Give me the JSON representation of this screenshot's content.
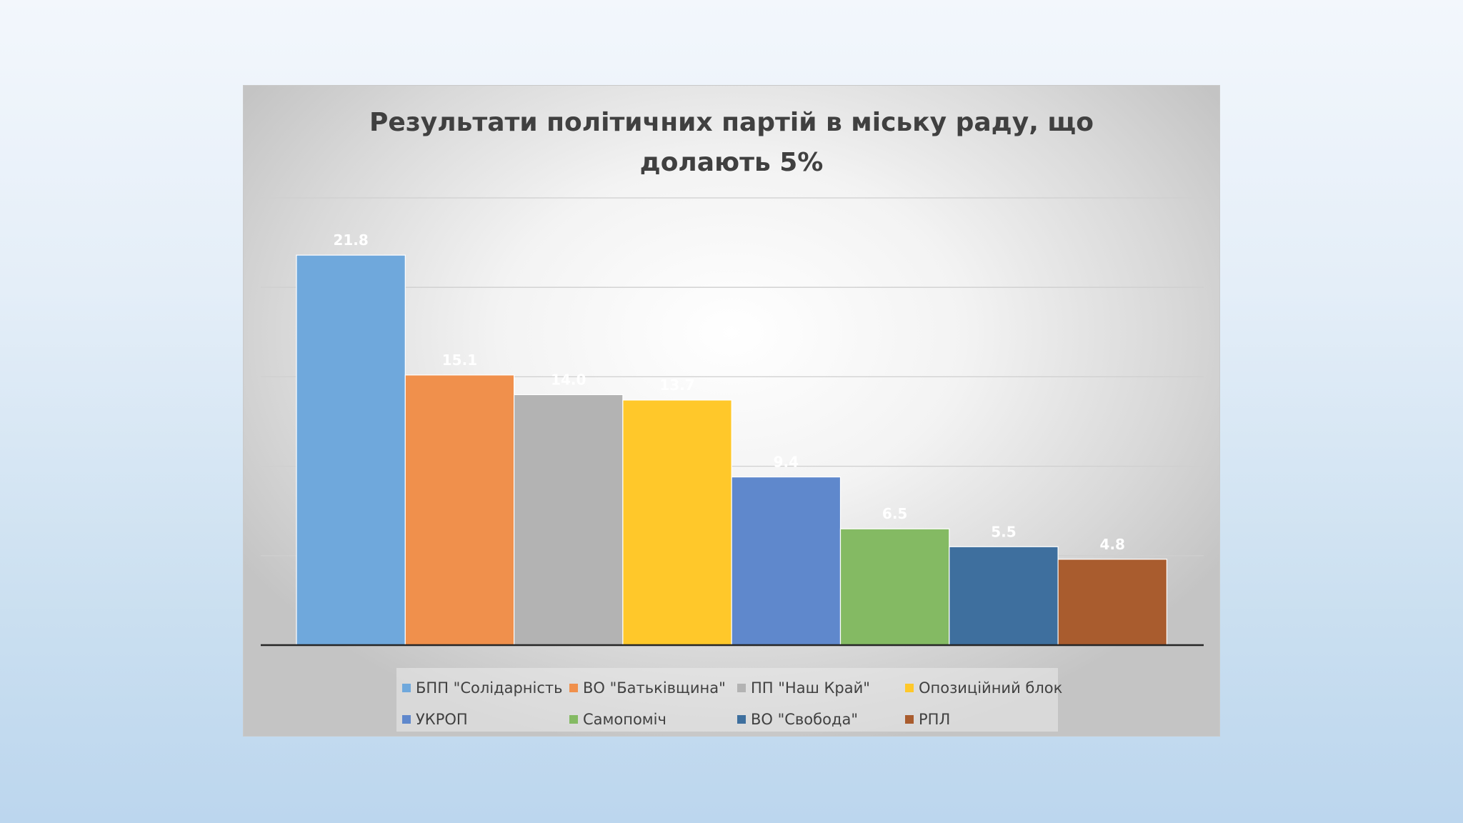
{
  "chart_data": {
    "type": "bar",
    "title": "Результати політичних партій в міську раду, що долають 5%",
    "title_lines": [
      "Результати політичних партій в міську раду, що",
      "долають 5%"
    ],
    "xlabel": "",
    "ylabel": "",
    "ylim": [
      0,
      25
    ],
    "y_gridlines": [
      5,
      10,
      15,
      20,
      25
    ],
    "grid": true,
    "legend_position": "bottom",
    "series": [
      {
        "name": "БПП \"Солідарність",
        "value": 21.8,
        "label": "21.8",
        "color": "#6fa8dc"
      },
      {
        "name": "ВО \"Батьківщина\"",
        "value": 15.1,
        "label": "15.1",
        "color": "#f0904c"
      },
      {
        "name": "ПП \"Наш Край\"",
        "value": 14.0,
        "label": "14.0",
        "color": "#b3b3b3"
      },
      {
        "name": "Опозиційний блок",
        "value": 13.7,
        "label": "13.7",
        "color": "#ffc82a"
      },
      {
        "name": "УКРОП",
        "value": 9.4,
        "label": "9.4",
        "color": "#5f88cc"
      },
      {
        "name": "Самопоміч",
        "value": 6.5,
        "label": "6.5",
        "color": "#84ba63"
      },
      {
        "name": "ВО \"Свобода\"",
        "value": 5.5,
        "label": "5.5",
        "color": "#3e6f9e"
      },
      {
        "name": "РПЛ",
        "value": 4.8,
        "label": "4.8",
        "color": "#a95c2e"
      }
    ]
  }
}
